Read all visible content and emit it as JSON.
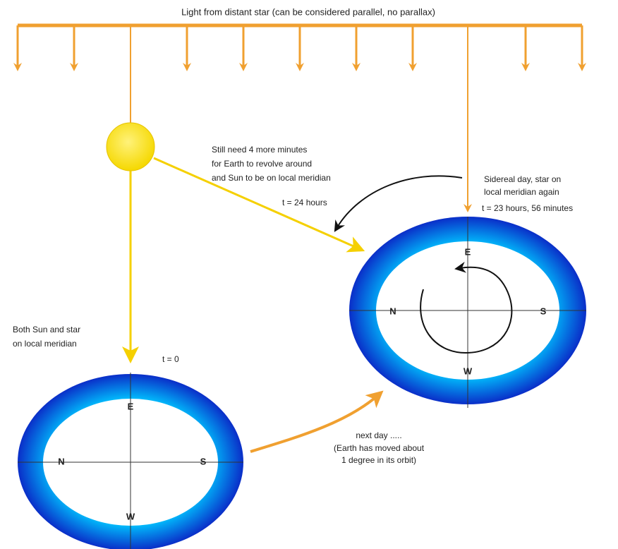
{
  "header": {
    "title": "Light from distant star (can be considered parallel, no parallax)"
  },
  "notes": {
    "sun_note": [
      "Still need 4 more minutes",
      "for Earth to revolve around",
      "and Sun to be on local meridian"
    ],
    "t24": "t = 24 hours",
    "sidereal_note": [
      "Sidereal day, star on",
      "local meridian again"
    ],
    "t2356": "t = 23 hours, 56 minutes",
    "both_note": [
      "Both Sun and star",
      "on local meridian"
    ],
    "t0": "t = 0",
    "next_note": [
      "next day .....",
      "(Earth has moved about",
      "1 degree in its orbit)"
    ]
  },
  "earths": [
    {
      "labels": {
        "E": "E",
        "N": "N",
        "S": "S",
        "W": "W"
      }
    },
    {
      "labels": {
        "E": "E",
        "N": "N",
        "S": "S",
        "W": "W"
      }
    }
  ]
}
